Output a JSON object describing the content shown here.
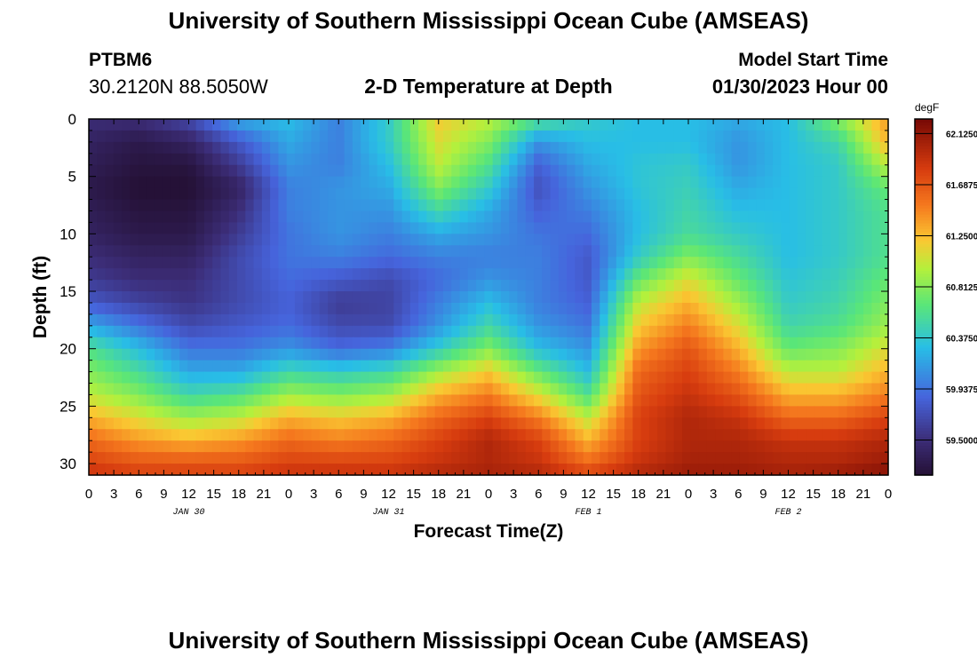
{
  "header": {
    "title": "University of Southern Mississippi Ocean Cube (AMSEAS)",
    "station_id": "PTBM6",
    "coordinates": "30.2120N  88.5050W",
    "plot_title": "2-D Temperature at Depth",
    "model_start_label": "Model Start Time",
    "model_start_value": "01/30/2023 Hour 00",
    "footer_title": "University of Southern Mississippi Ocean Cube (AMSEAS)"
  },
  "chart_data": {
    "type": "heatmap",
    "title": "2-D Temperature at Depth",
    "xlabel": "Forecast Time(Z)",
    "ylabel": "Depth (ft)",
    "xlim": [
      0,
      96
    ],
    "ylim": [
      31,
      0
    ],
    "x_tick_labels": [
      "0",
      "3",
      "6",
      "9",
      "12",
      "15",
      "18",
      "21",
      "0",
      "3",
      "6",
      "9",
      "12",
      "15",
      "18",
      "21",
      "0",
      "3",
      "6",
      "9",
      "12",
      "15",
      "18",
      "21",
      "0",
      "3",
      "6",
      "9",
      "12",
      "15",
      "18",
      "21",
      "0"
    ],
    "date_labels": [
      {
        "hour": 12,
        "label": "JAN 30"
      },
      {
        "hour": 36,
        "label": "JAN 31"
      },
      {
        "hour": 60,
        "label": "FEB 1"
      },
      {
        "hour": 84,
        "label": "FEB 2"
      }
    ],
    "y_ticks": [
      0,
      5,
      10,
      15,
      20,
      25,
      30
    ],
    "colorbar": {
      "unit": "degF",
      "min": 59.2,
      "max": 62.25,
      "tick_values": [
        62.125,
        61.6875,
        61.25,
        60.8125,
        60.375,
        59.9375,
        59.5
      ],
      "tick_labels": [
        "62.1250",
        "61.6875",
        "61.2500",
        "60.8125",
        "60.3750",
        "59.9375",
        "59.5000"
      ]
    },
    "depths_ft": [
      0,
      2,
      4,
      6,
      8,
      10,
      12,
      14,
      16,
      18,
      20,
      22,
      24,
      26,
      28,
      30,
      31
    ],
    "hours": [
      0,
      6,
      12,
      18,
      24,
      30,
      36,
      42,
      48,
      54,
      60,
      66,
      72,
      78,
      84,
      90,
      96
    ],
    "temperature_degF": [
      [
        59.5,
        59.5,
        59.7,
        60.2,
        60.3,
        60.0,
        60.4,
        61.2,
        61.0,
        60.6,
        60.4,
        60.3,
        60.3,
        60.2,
        60.3,
        60.8,
        61.4
      ],
      [
        59.4,
        59.3,
        59.4,
        59.8,
        60.2,
        60.0,
        60.4,
        61.1,
        60.8,
        60.1,
        60.3,
        60.3,
        60.3,
        60.1,
        60.3,
        60.5,
        61.3
      ],
      [
        59.35,
        59.25,
        59.25,
        59.6,
        60.1,
        60.0,
        60.3,
        61.0,
        60.6,
        59.85,
        60.2,
        60.35,
        60.4,
        60.1,
        60.3,
        60.4,
        61.0
      ],
      [
        59.3,
        59.2,
        59.2,
        59.4,
        60.0,
        60.1,
        60.2,
        60.8,
        60.4,
        59.75,
        60.1,
        60.35,
        60.45,
        60.2,
        60.3,
        60.4,
        60.7
      ],
      [
        59.35,
        59.25,
        59.25,
        59.5,
        60.0,
        60.1,
        60.1,
        60.5,
        60.2,
        59.85,
        60.0,
        60.3,
        60.5,
        60.3,
        60.3,
        60.4,
        60.6
      ],
      [
        59.4,
        59.3,
        59.3,
        59.6,
        59.95,
        60.1,
        60.0,
        60.2,
        60.1,
        59.95,
        59.9,
        60.3,
        60.55,
        60.4,
        60.3,
        60.4,
        60.6
      ],
      [
        59.5,
        59.4,
        59.4,
        59.7,
        59.95,
        60.0,
        59.9,
        60.0,
        60.0,
        60.0,
        59.8,
        60.4,
        60.8,
        60.55,
        60.3,
        60.4,
        60.6
      ],
      [
        59.6,
        59.5,
        59.5,
        59.7,
        59.9,
        59.8,
        59.7,
        59.9,
        60.1,
        60.0,
        59.8,
        60.7,
        61.1,
        60.7,
        60.35,
        60.45,
        60.7
      ],
      [
        59.8,
        59.65,
        59.55,
        59.7,
        59.85,
        59.6,
        59.65,
        60.0,
        60.3,
        60.0,
        59.85,
        61.0,
        61.3,
        60.9,
        60.4,
        60.5,
        60.8
      ],
      [
        60.2,
        59.95,
        59.7,
        59.8,
        59.9,
        59.7,
        59.7,
        60.1,
        60.5,
        60.1,
        59.95,
        61.2,
        61.5,
        61.1,
        60.5,
        60.6,
        60.9
      ],
      [
        60.6,
        60.3,
        59.95,
        59.95,
        60.1,
        59.9,
        60.0,
        60.4,
        60.8,
        60.3,
        60.1,
        61.4,
        61.7,
        61.3,
        60.7,
        60.8,
        61.1
      ],
      [
        60.8,
        60.55,
        60.2,
        60.2,
        60.5,
        60.4,
        60.5,
        60.9,
        61.2,
        60.7,
        60.3,
        61.6,
        61.8,
        61.5,
        61.0,
        61.0,
        61.3
      ],
      [
        61.0,
        60.8,
        60.5,
        60.6,
        60.9,
        60.8,
        60.9,
        61.3,
        61.5,
        61.1,
        60.6,
        61.7,
        61.9,
        61.7,
        61.3,
        61.3,
        61.5
      ],
      [
        61.3,
        61.1,
        60.9,
        61.0,
        61.3,
        61.2,
        61.3,
        61.6,
        61.8,
        61.5,
        61.0,
        61.8,
        62.0,
        61.9,
        61.6,
        61.6,
        61.8
      ],
      [
        61.6,
        61.4,
        61.3,
        61.4,
        61.6,
        61.5,
        61.6,
        61.8,
        62.0,
        61.8,
        61.3,
        61.8,
        62.0,
        62.0,
        61.9,
        61.9,
        62.0
      ],
      [
        61.8,
        61.7,
        61.7,
        61.7,
        61.8,
        61.8,
        61.8,
        61.9,
        62.0,
        61.9,
        61.6,
        61.9,
        62.05,
        62.05,
        62.0,
        62.0,
        62.1
      ],
      [
        61.9,
        61.8,
        61.8,
        61.8,
        61.9,
        61.9,
        61.9,
        62.0,
        62.05,
        62.0,
        61.8,
        62.0,
        62.1,
        62.1,
        62.05,
        62.1,
        62.2
      ]
    ]
  }
}
